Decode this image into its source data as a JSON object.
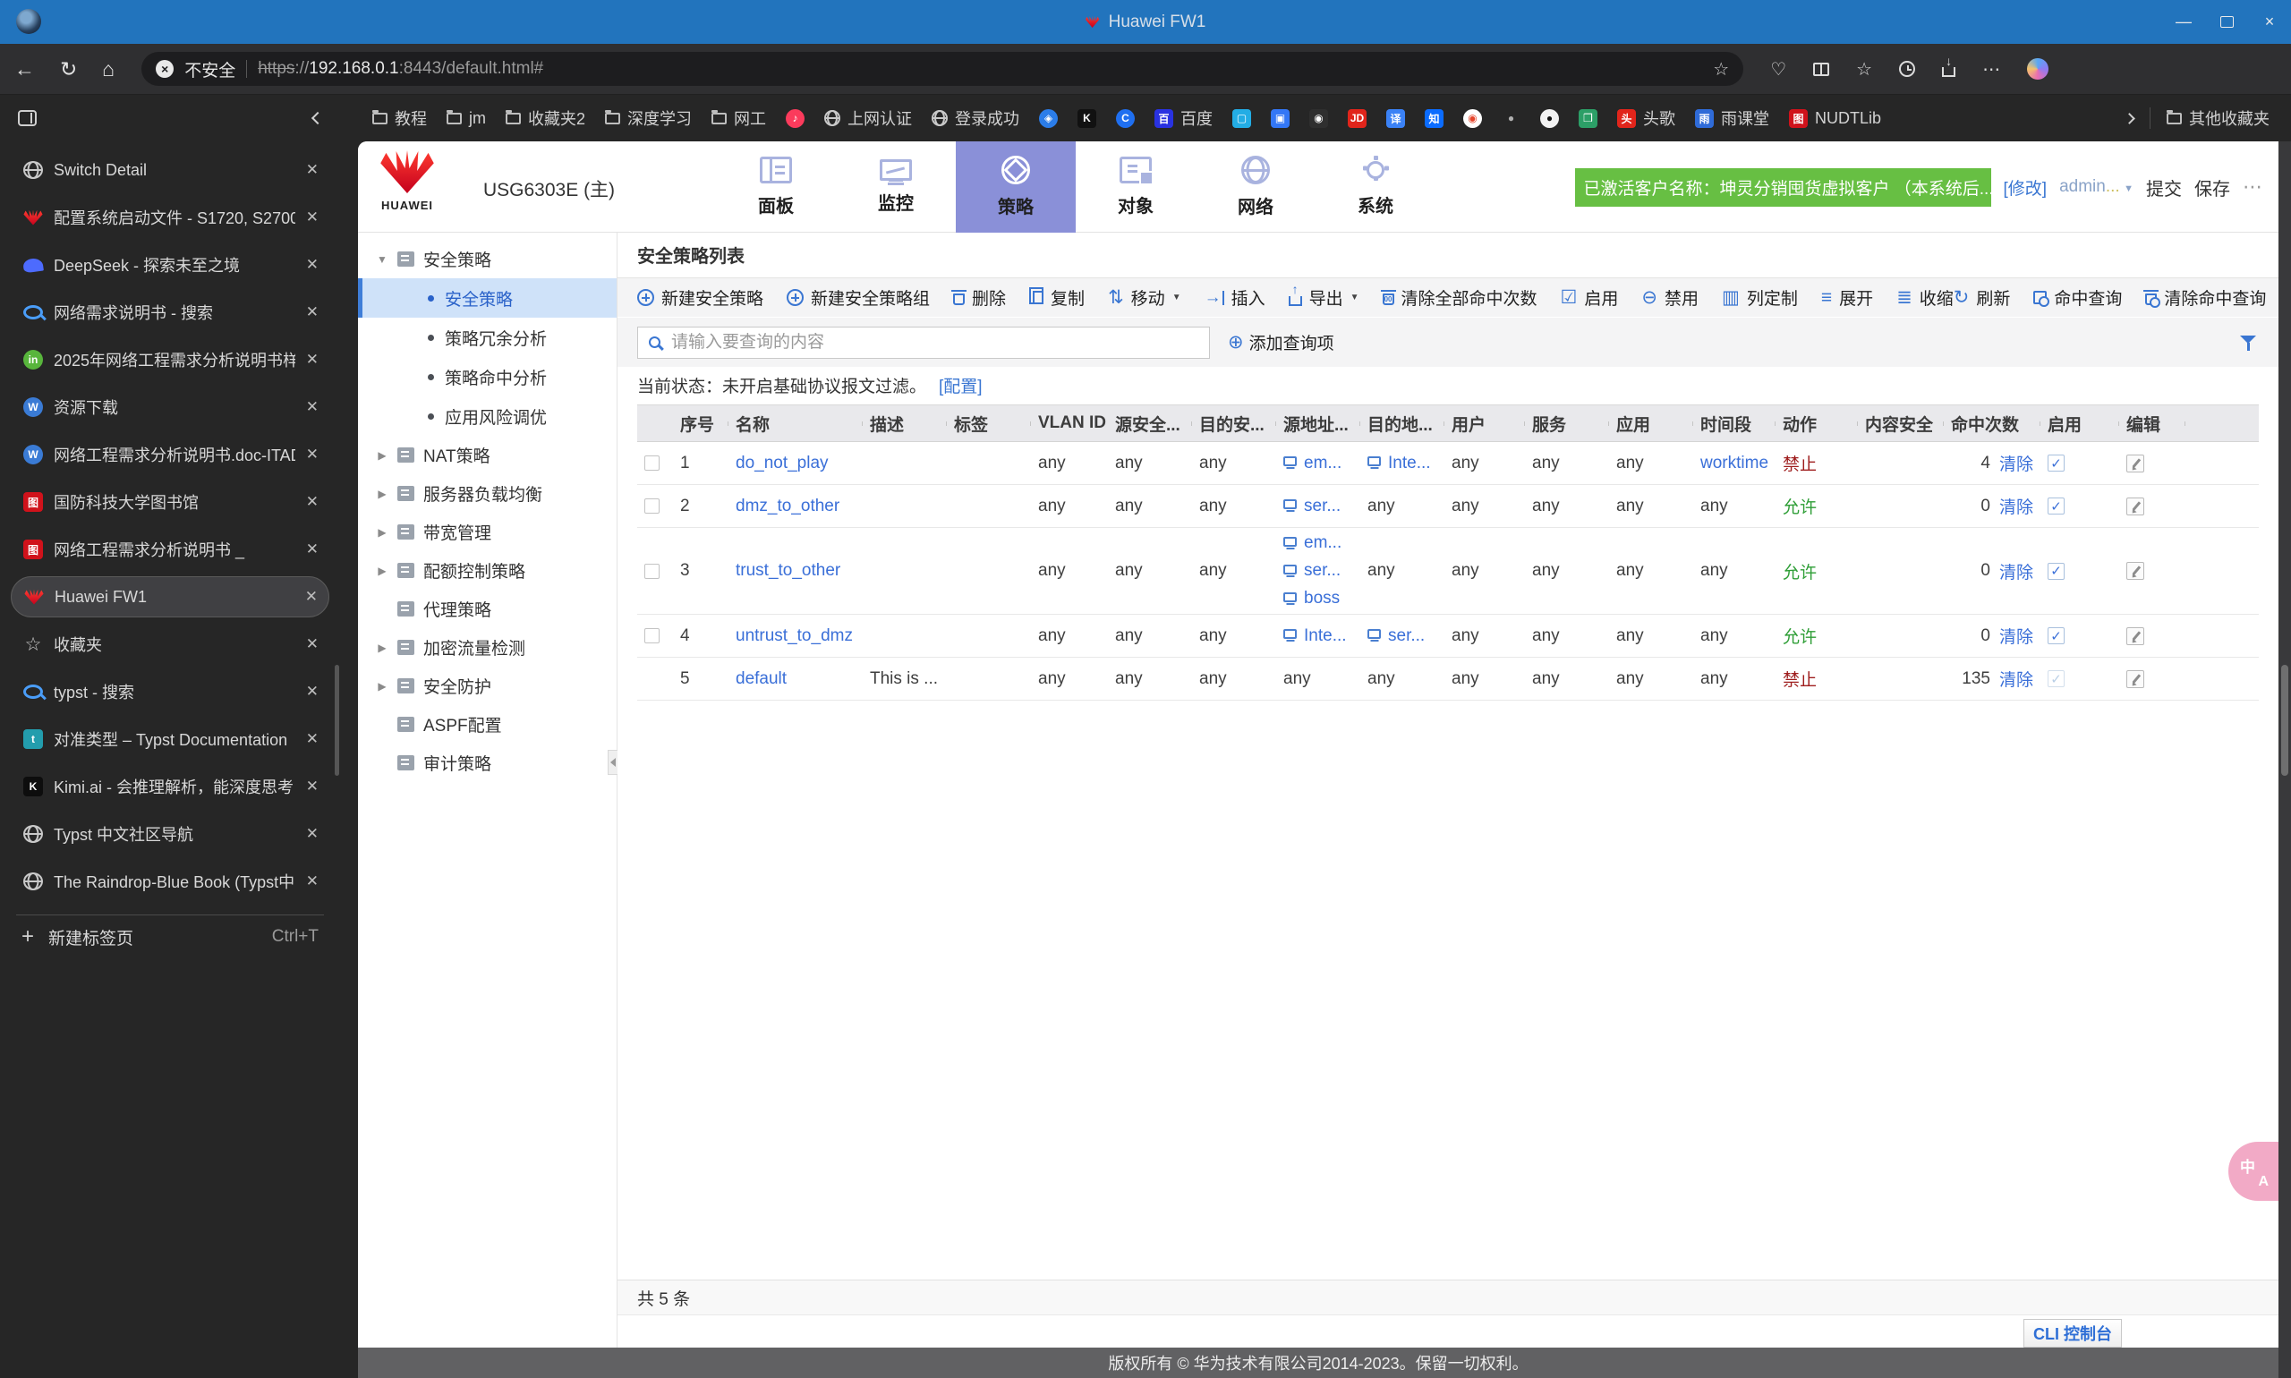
{
  "browser": {
    "window_title": "Huawei FW1",
    "address": {
      "security": "不安全",
      "scheme": "https",
      "sep": "://",
      "host": "192.168.0.1",
      "path": ":8443/default.html#"
    },
    "bookmarks": [
      {
        "kind": "folder",
        "label": "教程"
      },
      {
        "kind": "folder",
        "label": "jm"
      },
      {
        "kind": "folder",
        "label": "收藏夹2"
      },
      {
        "kind": "folder",
        "label": "深度学习"
      },
      {
        "kind": "folder",
        "label": "网工"
      },
      {
        "kind": "tile",
        "label": "",
        "bg": "#fb3b5c",
        "glyph": "♪",
        "shape": "round"
      },
      {
        "kind": "globe",
        "label": "上网认证"
      },
      {
        "kind": "globe",
        "label": "登录成功"
      },
      {
        "kind": "tile",
        "label": "",
        "bg": "#2b7de9",
        "glyph": "◈",
        "shape": "round"
      },
      {
        "kind": "tile",
        "label": "",
        "bg": "#111111",
        "glyph": "K"
      },
      {
        "kind": "tile",
        "label": "",
        "bg": "#1f6ff0",
        "glyph": "C",
        "shape": "round"
      },
      {
        "kind": "tile",
        "label": "百度",
        "bg": "#2932e1",
        "glyph": "百"
      },
      {
        "kind": "tile",
        "label": "",
        "bg": "#23ade5",
        "glyph": "▢"
      },
      {
        "kind": "tile",
        "label": "",
        "bg": "#3377f6",
        "glyph": "▣"
      },
      {
        "kind": "tile",
        "label": "",
        "bg": "#2f2f2f",
        "glyph": "◉"
      },
      {
        "kind": "tile",
        "label": "",
        "bg": "#e1251b",
        "glyph": "JD"
      },
      {
        "kind": "tile",
        "label": "",
        "bg": "#3b82f6",
        "glyph": "译"
      },
      {
        "kind": "tile",
        "label": "",
        "bg": "#0b6cff",
        "glyph": "知"
      },
      {
        "kind": "tile",
        "label": "",
        "bg": "#ffffff",
        "fg": "#e6452c",
        "glyph": "◉",
        "shape": "round"
      },
      {
        "kind": "tile",
        "label": "",
        "bg": "transparent",
        "fg": "#b0b0b0",
        "glyph": "●"
      },
      {
        "kind": "tile",
        "label": "",
        "bg": "#f2f2f2",
        "fg": "#111111",
        "glyph": "●",
        "shape": "round"
      },
      {
        "kind": "tile",
        "label": "",
        "bg": "#2c9f67",
        "glyph": "❒"
      },
      {
        "kind": "tile",
        "label": "头歌",
        "bg": "#e1251b",
        "glyph": "头"
      },
      {
        "kind": "tile",
        "label": "雨课堂",
        "bg": "#2f6bd8",
        "glyph": "雨"
      },
      {
        "kind": "tile",
        "label": "NUDTLib",
        "bg": "#d0121b",
        "glyph": "图"
      }
    ],
    "other_bookmarks": "其他收藏夹",
    "tabs": [
      {
        "title": "Switch Detail",
        "icon": "globe"
      },
      {
        "title": "配置系统启动文件 - S1720, S2700,",
        "icon": "huawei"
      },
      {
        "title": "DeepSeek - 探索未至之境",
        "icon": "deepseek"
      },
      {
        "title": "网络需求说明书 - 搜索",
        "icon": "search"
      },
      {
        "title": "2025年网络工程需求分析说明书样",
        "icon": "tile",
        "bg": "#58b53c",
        "glyph": "in",
        "shape": "round"
      },
      {
        "title": "资源下载",
        "icon": "tile",
        "bg": "#3a7bd5",
        "glyph": "W",
        "shape": "round"
      },
      {
        "title": "网络工程需求分析说明书.doc-ITAD",
        "icon": "tile",
        "bg": "#3a7bd5",
        "glyph": "W",
        "shape": "round"
      },
      {
        "title": "国防科技大学图书馆",
        "icon": "tile",
        "bg": "#d0121b",
        "glyph": "图"
      },
      {
        "title": "网络工程需求分析说明书 _",
        "icon": "tile",
        "bg": "#d0121b",
        "glyph": "图"
      },
      {
        "title": "Huawei FW1",
        "icon": "huawei",
        "active": true
      },
      {
        "title": "收藏夹",
        "icon": "star"
      },
      {
        "title": "typst - 搜索",
        "icon": "search"
      },
      {
        "title": "对准类型 – Typst Documentation",
        "icon": "tile",
        "bg": "#239dad",
        "glyph": "t"
      },
      {
        "title": "Kimi.ai - 会推理解析，能深度思考",
        "icon": "tile",
        "bg": "#0d0d0d",
        "glyph": "K"
      },
      {
        "title": "Typst 中文社区导航",
        "icon": "globe"
      },
      {
        "title": "The Raindrop-Blue Book (Typst中",
        "icon": "globe"
      }
    ],
    "new_tab": {
      "label": "新建标签页",
      "shortcut": "Ctrl+T"
    }
  },
  "app": {
    "brand": "HUAWEI",
    "device": "USG6303E (主)",
    "nav": [
      {
        "label": "面板",
        "icon": "panel"
      },
      {
        "label": "监控",
        "icon": "monitor"
      },
      {
        "label": "策略",
        "icon": "policy",
        "active": true
      },
      {
        "label": "对象",
        "icon": "object"
      },
      {
        "label": "网络",
        "icon": "network"
      },
      {
        "label": "系统",
        "icon": "system"
      }
    ],
    "account": {
      "badge": "已激活客户名称：坤灵分销囤货虚拟客户 （本系统后...",
      "modify": "[修改]",
      "user": "admin",
      "ellipsis": "...",
      "submit": "提交",
      "save": "保存",
      "more": "⋯"
    },
    "tree": [
      {
        "label": "安全策略",
        "arrow": "down",
        "children": [
          {
            "label": "安全策略",
            "selected": true
          },
          {
            "label": "策略冗余分析"
          },
          {
            "label": "策略命中分析"
          },
          {
            "label": "应用风险调优"
          }
        ]
      },
      {
        "label": "NAT策略",
        "arrow": "right"
      },
      {
        "label": "服务器负载均衡",
        "arrow": "right"
      },
      {
        "label": "带宽管理",
        "arrow": "right"
      },
      {
        "label": "配额控制策略",
        "arrow": "right"
      },
      {
        "label": "代理策略",
        "arrow": "none"
      },
      {
        "label": "加密流量检测",
        "arrow": "right"
      },
      {
        "label": "安全防护",
        "arrow": "right"
      },
      {
        "label": "ASPF配置",
        "arrow": "none"
      },
      {
        "label": "审计策略",
        "arrow": "none"
      }
    ],
    "content": {
      "title": "安全策略列表",
      "toolbar": [
        {
          "label": "新建安全策略",
          "icon": "shieldplus"
        },
        {
          "label": "新建安全策略组",
          "icon": "shieldplus"
        },
        {
          "label": "删除",
          "icon": "trash"
        },
        {
          "label": "复制",
          "icon": "copy"
        },
        {
          "label": "移动",
          "icon": "move",
          "caret": true
        },
        {
          "label": "插入",
          "icon": "insert"
        },
        {
          "label": "导出",
          "icon": "export",
          "caret": true
        },
        {
          "label": "清除全部命中次数",
          "icon": "clearhits"
        },
        {
          "label": "启用",
          "icon": "enable"
        },
        {
          "label": "禁用",
          "icon": "disable"
        },
        {
          "label": "列定制",
          "icon": "columns"
        },
        {
          "label": "展开",
          "icon": "expand"
        },
        {
          "label": "收缩",
          "icon": "collapse"
        }
      ],
      "toolbar_right": [
        {
          "label": "刷新",
          "icon": "refresh"
        },
        {
          "label": "命中查询",
          "icon": "hitquery"
        },
        {
          "label": "清除命中查询",
          "icon": "clearhitquery"
        }
      ],
      "search": {
        "placeholder": "请输入要查询的内容",
        "add": "添加查询项"
      },
      "status": {
        "text": "当前状态：未开启基础协议报文过滤。",
        "link": "[配置]"
      },
      "table": {
        "columns": [
          {
            "label": "",
            "w": 40
          },
          {
            "label": "序号",
            "w": 62
          },
          {
            "label": "名称",
            "w": 150
          },
          {
            "label": "描述",
            "w": 94
          },
          {
            "label": "标签",
            "w": 94
          },
          {
            "label": "VLAN ID",
            "w": 86
          },
          {
            "label": "源安全...",
            "w": 94
          },
          {
            "label": "目的安...",
            "w": 94
          },
          {
            "label": "源地址...",
            "w": 94
          },
          {
            "label": "目的地...",
            "w": 94
          },
          {
            "label": "用户",
            "w": 90
          },
          {
            "label": "服务",
            "w": 94
          },
          {
            "label": "应用",
            "w": 94
          },
          {
            "label": "时间段",
            "w": 92
          },
          {
            "label": "动作",
            "w": 92
          },
          {
            "label": "内容安全",
            "w": 96
          },
          {
            "label": "命中次数",
            "w": 108
          },
          {
            "label": "启用",
            "w": 88
          },
          {
            "label": "编辑",
            "w": 74
          },
          {
            "label": "",
            "w": 0
          }
        ],
        "rows": [
          [
            {
              "t": "rowchk"
            },
            {
              "t": "text",
              "v": "1"
            },
            {
              "t": "link",
              "v": "do_not_play"
            },
            {
              "t": "text",
              "v": ""
            },
            {
              "t": "text",
              "v": ""
            },
            {
              "t": "text",
              "v": "any"
            },
            {
              "t": "text",
              "v": "any"
            },
            {
              "t": "text",
              "v": "any"
            },
            {
              "t": "hosts",
              "v": [
                "em..."
              ]
            },
            {
              "t": "hosts",
              "v": [
                "Inte..."
              ]
            },
            {
              "t": "text",
              "v": "any"
            },
            {
              "t": "text",
              "v": "any"
            },
            {
              "t": "text",
              "v": "any"
            },
            {
              "t": "link",
              "v": "worktime"
            },
            {
              "t": "deny",
              "v": "禁止"
            },
            {
              "t": "text",
              "v": ""
            },
            {
              "t": "hits",
              "v": "4",
              "clear": "清除"
            },
            {
              "t": "chk",
              "v": "on"
            },
            {
              "t": "edit"
            },
            {
              "t": "none"
            }
          ],
          [
            {
              "t": "rowchk"
            },
            {
              "t": "text",
              "v": "2"
            },
            {
              "t": "link",
              "v": "dmz_to_other"
            },
            {
              "t": "text",
              "v": ""
            },
            {
              "t": "text",
              "v": ""
            },
            {
              "t": "text",
              "v": "any"
            },
            {
              "t": "text",
              "v": "any"
            },
            {
              "t": "text",
              "v": "any"
            },
            {
              "t": "hosts",
              "v": [
                "ser..."
              ]
            },
            {
              "t": "text",
              "v": "any"
            },
            {
              "t": "text",
              "v": "any"
            },
            {
              "t": "text",
              "v": "any"
            },
            {
              "t": "text",
              "v": "any"
            },
            {
              "t": "text",
              "v": "any"
            },
            {
              "t": "allow",
              "v": "允许"
            },
            {
              "t": "text",
              "v": ""
            },
            {
              "t": "hits",
              "v": "0",
              "clear": "清除"
            },
            {
              "t": "chk",
              "v": "on"
            },
            {
              "t": "edit"
            },
            {
              "t": "none"
            }
          ],
          [
            {
              "t": "rowchk"
            },
            {
              "t": "text",
              "v": "3"
            },
            {
              "t": "link",
              "v": "trust_to_other"
            },
            {
              "t": "text",
              "v": ""
            },
            {
              "t": "text",
              "v": ""
            },
            {
              "t": "text",
              "v": "any"
            },
            {
              "t": "text",
              "v": "any"
            },
            {
              "t": "text",
              "v": "any"
            },
            {
              "t": "hosts",
              "v": [
                "em...",
                "ser...",
                "boss"
              ]
            },
            {
              "t": "text",
              "v": "any"
            },
            {
              "t": "text",
              "v": "any"
            },
            {
              "t": "text",
              "v": "any"
            },
            {
              "t": "text",
              "v": "any"
            },
            {
              "t": "text",
              "v": "any"
            },
            {
              "t": "allow",
              "v": "允许"
            },
            {
              "t": "text",
              "v": ""
            },
            {
              "t": "hits",
              "v": "0",
              "clear": "清除"
            },
            {
              "t": "chk",
              "v": "on"
            },
            {
              "t": "edit"
            },
            {
              "t": "none"
            }
          ],
          [
            {
              "t": "rowchk"
            },
            {
              "t": "text",
              "v": "4"
            },
            {
              "t": "link",
              "v": "untrust_to_dmz"
            },
            {
              "t": "text",
              "v": ""
            },
            {
              "t": "text",
              "v": ""
            },
            {
              "t": "text",
              "v": "any"
            },
            {
              "t": "text",
              "v": "any"
            },
            {
              "t": "text",
              "v": "any"
            },
            {
              "t": "hosts",
              "v": [
                "Inte..."
              ]
            },
            {
              "t": "hosts",
              "v": [
                "ser..."
              ]
            },
            {
              "t": "text",
              "v": "any"
            },
            {
              "t": "text",
              "v": "any"
            },
            {
              "t": "text",
              "v": "any"
            },
            {
              "t": "text",
              "v": "any"
            },
            {
              "t": "allow",
              "v": "允许"
            },
            {
              "t": "text",
              "v": ""
            },
            {
              "t": "hits",
              "v": "0",
              "clear": "清除"
            },
            {
              "t": "chk",
              "v": "on"
            },
            {
              "t": "edit"
            },
            {
              "t": "none"
            }
          ],
          [
            {
              "t": "none"
            },
            {
              "t": "text",
              "v": "5"
            },
            {
              "t": "link",
              "v": "default"
            },
            {
              "t": "text",
              "v": "This is ..."
            },
            {
              "t": "text",
              "v": ""
            },
            {
              "t": "text",
              "v": "any"
            },
            {
              "t": "text",
              "v": "any"
            },
            {
              "t": "text",
              "v": "any"
            },
            {
              "t": "text",
              "v": "any"
            },
            {
              "t": "text",
              "v": "any"
            },
            {
              "t": "text",
              "v": "any"
            },
            {
              "t": "text",
              "v": "any"
            },
            {
              "t": "text",
              "v": "any"
            },
            {
              "t": "text",
              "v": "any"
            },
            {
              "t": "deny",
              "v": "禁止"
            },
            {
              "t": "text",
              "v": ""
            },
            {
              "t": "hits",
              "v": "135",
              "clear": "清除"
            },
            {
              "t": "chk",
              "v": "dim"
            },
            {
              "t": "edit"
            },
            {
              "t": "none"
            }
          ]
        ]
      },
      "total": "共 5 条",
      "cli": "CLI 控制台",
      "copyright": "版权所有 © 华为技术有限公司2014-2023。保留一切权利。"
    }
  }
}
